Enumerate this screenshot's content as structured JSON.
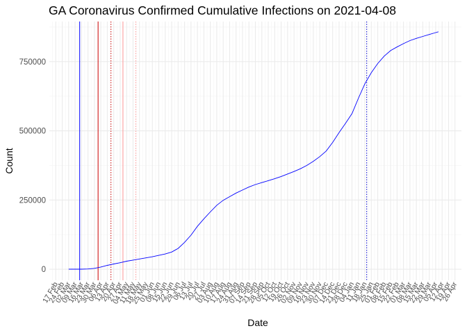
{
  "chart_data": {
    "type": "line",
    "title": "GA Coronavirus Confirmed Cumulative Infections on 2021-04-08",
    "xlabel": "Date",
    "ylabel": "Count",
    "ylim": [
      -40000,
      895000
    ],
    "y_ticks": [
      0,
      250000,
      500000,
      750000
    ],
    "y_tick_labels": [
      "0",
      "250000",
      "500000",
      "750000"
    ],
    "x_tick_labels": [
      "17 Feb",
      "24 Feb",
      "02 Mar",
      "09 Mar",
      "16 Mar",
      "23 Mar",
      "30 Mar",
      "06 Apr",
      "13 Apr",
      "20 Apr",
      "27 Apr",
      "04 May",
      "11 May",
      "18 May",
      "25 May",
      "01 Jun",
      "08 Jun",
      "15 Jun",
      "22 Jun",
      "29 Jun",
      "06 Jul",
      "13 Jul",
      "20 Jul",
      "27 Jul",
      "03 Aug",
      "10 Aug",
      "17 Aug",
      "24 Aug",
      "31 Aug",
      "07 Sep",
      "14 Sep",
      "21 Sep",
      "28 Sep",
      "05 Oct",
      "12 Oct",
      "19 Oct",
      "26 Oct",
      "02 Nov",
      "09 Nov",
      "16 Nov",
      "23 Nov",
      "30 Nov",
      "07 Dec",
      "14 Dec",
      "21 Dec",
      "28 Dec",
      "04 Jan",
      "11 Jan",
      "18 Jan",
      "25 Jan",
      "01 Feb",
      "08 Feb",
      "15 Feb",
      "22 Feb",
      "01 Mar",
      "08 Mar",
      "15 Mar",
      "22 Mar",
      "29 Mar",
      "05 Apr",
      "12 Apr",
      "19 Apr",
      "26 Apr"
    ],
    "grid": true,
    "series": [
      {
        "color": "#0000ff",
        "points": [
          [
            "2020-03-02",
            2
          ],
          [
            "2020-03-16",
            120
          ],
          [
            "2020-03-23",
            800
          ],
          [
            "2020-03-30",
            3000
          ],
          [
            "2020-04-06",
            8000
          ],
          [
            "2020-04-13",
            14000
          ],
          [
            "2020-04-20",
            19000
          ],
          [
            "2020-04-27",
            23500
          ],
          [
            "2020-05-04",
            29000
          ],
          [
            "2020-05-11",
            33000
          ],
          [
            "2020-05-18",
            37000
          ],
          [
            "2020-05-25",
            41000
          ],
          [
            "2020-06-01",
            45000
          ],
          [
            "2020-06-08",
            50000
          ],
          [
            "2020-06-15",
            55000
          ],
          [
            "2020-06-22",
            62000
          ],
          [
            "2020-06-29",
            75000
          ],
          [
            "2020-07-06",
            97000
          ],
          [
            "2020-07-13",
            123000
          ],
          [
            "2020-07-20",
            155000
          ],
          [
            "2020-07-27",
            182000
          ],
          [
            "2020-08-03",
            207000
          ],
          [
            "2020-08-10",
            231000
          ],
          [
            "2020-08-17",
            249000
          ],
          [
            "2020-08-24",
            262000
          ],
          [
            "2020-08-31",
            275000
          ],
          [
            "2020-09-07",
            286000
          ],
          [
            "2020-09-14",
            297000
          ],
          [
            "2020-09-21",
            306000
          ],
          [
            "2020-09-28",
            313000
          ],
          [
            "2020-10-05",
            320000
          ],
          [
            "2020-10-12",
            327000
          ],
          [
            "2020-10-19",
            335000
          ],
          [
            "2020-10-26",
            344000
          ],
          [
            "2020-11-02",
            353000
          ],
          [
            "2020-11-09",
            363000
          ],
          [
            "2020-11-16",
            375000
          ],
          [
            "2020-11-23",
            390000
          ],
          [
            "2020-11-30",
            407000
          ],
          [
            "2020-12-07",
            427000
          ],
          [
            "2020-12-14",
            458000
          ],
          [
            "2020-12-21",
            494000
          ],
          [
            "2020-12-28",
            527000
          ],
          [
            "2021-01-04",
            562000
          ],
          [
            "2021-01-11",
            618000
          ],
          [
            "2021-01-18",
            670000
          ],
          [
            "2021-01-25",
            710000
          ],
          [
            "2021-02-01",
            743000
          ],
          [
            "2021-02-08",
            770000
          ],
          [
            "2021-02-15",
            790000
          ],
          [
            "2021-02-22",
            803000
          ],
          [
            "2021-03-01",
            815000
          ],
          [
            "2021-03-08",
            826000
          ],
          [
            "2021-03-15",
            834000
          ],
          [
            "2021-03-22",
            841000
          ],
          [
            "2021-03-29",
            848000
          ],
          [
            "2021-04-05",
            855000
          ],
          [
            "2021-04-08",
            858000
          ]
        ]
      }
    ],
    "vertical_lines": [
      {
        "date": "2020-03-14",
        "color": "#0000ff",
        "style": "solid"
      },
      {
        "date": "2020-04-03",
        "color": "#cc0000",
        "style": "solid"
      },
      {
        "date": "2020-04-17",
        "color": "#cc0000",
        "style": "dotted"
      },
      {
        "date": "2020-04-30",
        "color": "#ff9999",
        "style": "solid"
      },
      {
        "date": "2020-05-14",
        "color": "#ff9999",
        "style": "dotted"
      },
      {
        "date": "2021-01-20",
        "color": "#0000cc",
        "style": "dotted"
      }
    ]
  }
}
